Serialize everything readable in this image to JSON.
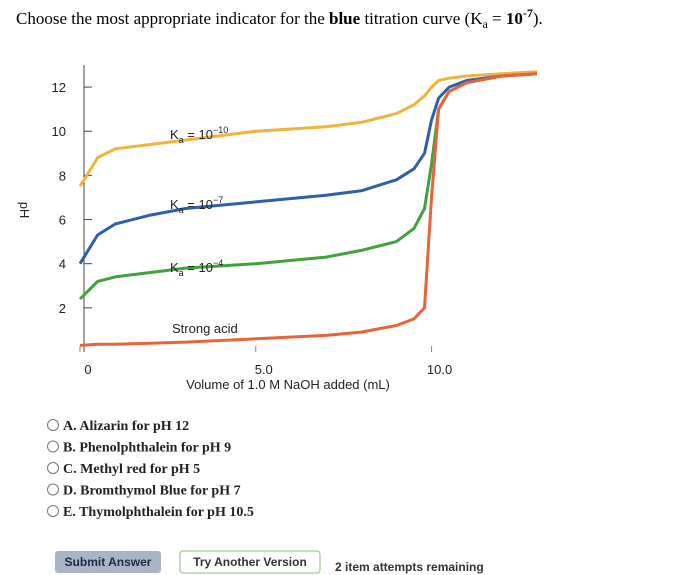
{
  "question": {
    "before": "Choose the most appropriate indicator for the ",
    "emphasis": "blue",
    "after": " titration curve (",
    "k": "K",
    "k_sub": "a",
    "eq": " = ",
    "ten": "10",
    "exp": "-7",
    "close": ")."
  },
  "chart_data": {
    "type": "line",
    "x_label": "Volume of 1.0 M NaOH added (mL)",
    "y_label": "pH",
    "x": [
      0,
      0.5,
      1,
      2,
      3,
      5,
      7,
      8,
      9,
      9.5,
      9.8,
      10,
      10.2,
      10.5,
      11,
      12,
      13
    ],
    "series": [
      {
        "label": {
          "k": "K",
          "sub": "a",
          "eq": " = 10",
          "sup": "−10"
        },
        "color": "#f0b43c",
        "values": [
          7.5,
          8.8,
          9.2,
          9.4,
          9.6,
          10.0,
          10.2,
          10.4,
          10.8,
          11.2,
          11.6,
          12.0,
          12.3,
          12.4,
          12.5,
          12.6,
          12.7
        ]
      },
      {
        "label": {
          "k": "K",
          "sub": "a",
          "eq": " = 10",
          "sup": "−7"
        },
        "color": "#2e5fa8",
        "values": [
          4.0,
          5.3,
          5.8,
          6.2,
          6.5,
          6.8,
          7.1,
          7.3,
          7.8,
          8.3,
          9.0,
          10.5,
          11.5,
          12.0,
          12.3,
          12.5,
          12.6
        ]
      },
      {
        "label": {
          "k": "K",
          "sub": "a",
          "eq": " = 10",
          "sup": "−4"
        },
        "color": "#3fa23a",
        "values": [
          2.4,
          3.2,
          3.4,
          3.6,
          3.8,
          4.0,
          4.3,
          4.6,
          5.0,
          5.6,
          6.5,
          8.5,
          11.0,
          11.8,
          12.2,
          12.5,
          12.6
        ]
      },
      {
        "name": "Strong acid",
        "color": "#e8633a",
        "values": [
          0.3,
          0.35,
          0.35,
          0.4,
          0.45,
          0.6,
          0.75,
          0.9,
          1.2,
          1.5,
          2.0,
          7.0,
          11.0,
          11.8,
          12.2,
          12.5,
          12.6
        ]
      }
    ],
    "xlim": [
      0,
      13
    ],
    "ylim": [
      0,
      13
    ],
    "xticks": [
      0,
      {
        "value": 5,
        "label": "5.0"
      },
      {
        "value": 10,
        "label": "10.0"
      }
    ],
    "yticks": [
      2,
      4,
      6,
      8,
      10,
      12
    ]
  },
  "options": [
    "A. Alizarin for pH 12",
    "B. Phenolphthalein for pH 9",
    "C. Methyl red for pH 5",
    "D. Bromthymol Blue for pH 7",
    "E. Thymolphthalein for pH 10.5"
  ],
  "buttons": {
    "submit": "Submit Answer",
    "try_another": "Try Another Version"
  },
  "status": "2 item attempts remaining"
}
